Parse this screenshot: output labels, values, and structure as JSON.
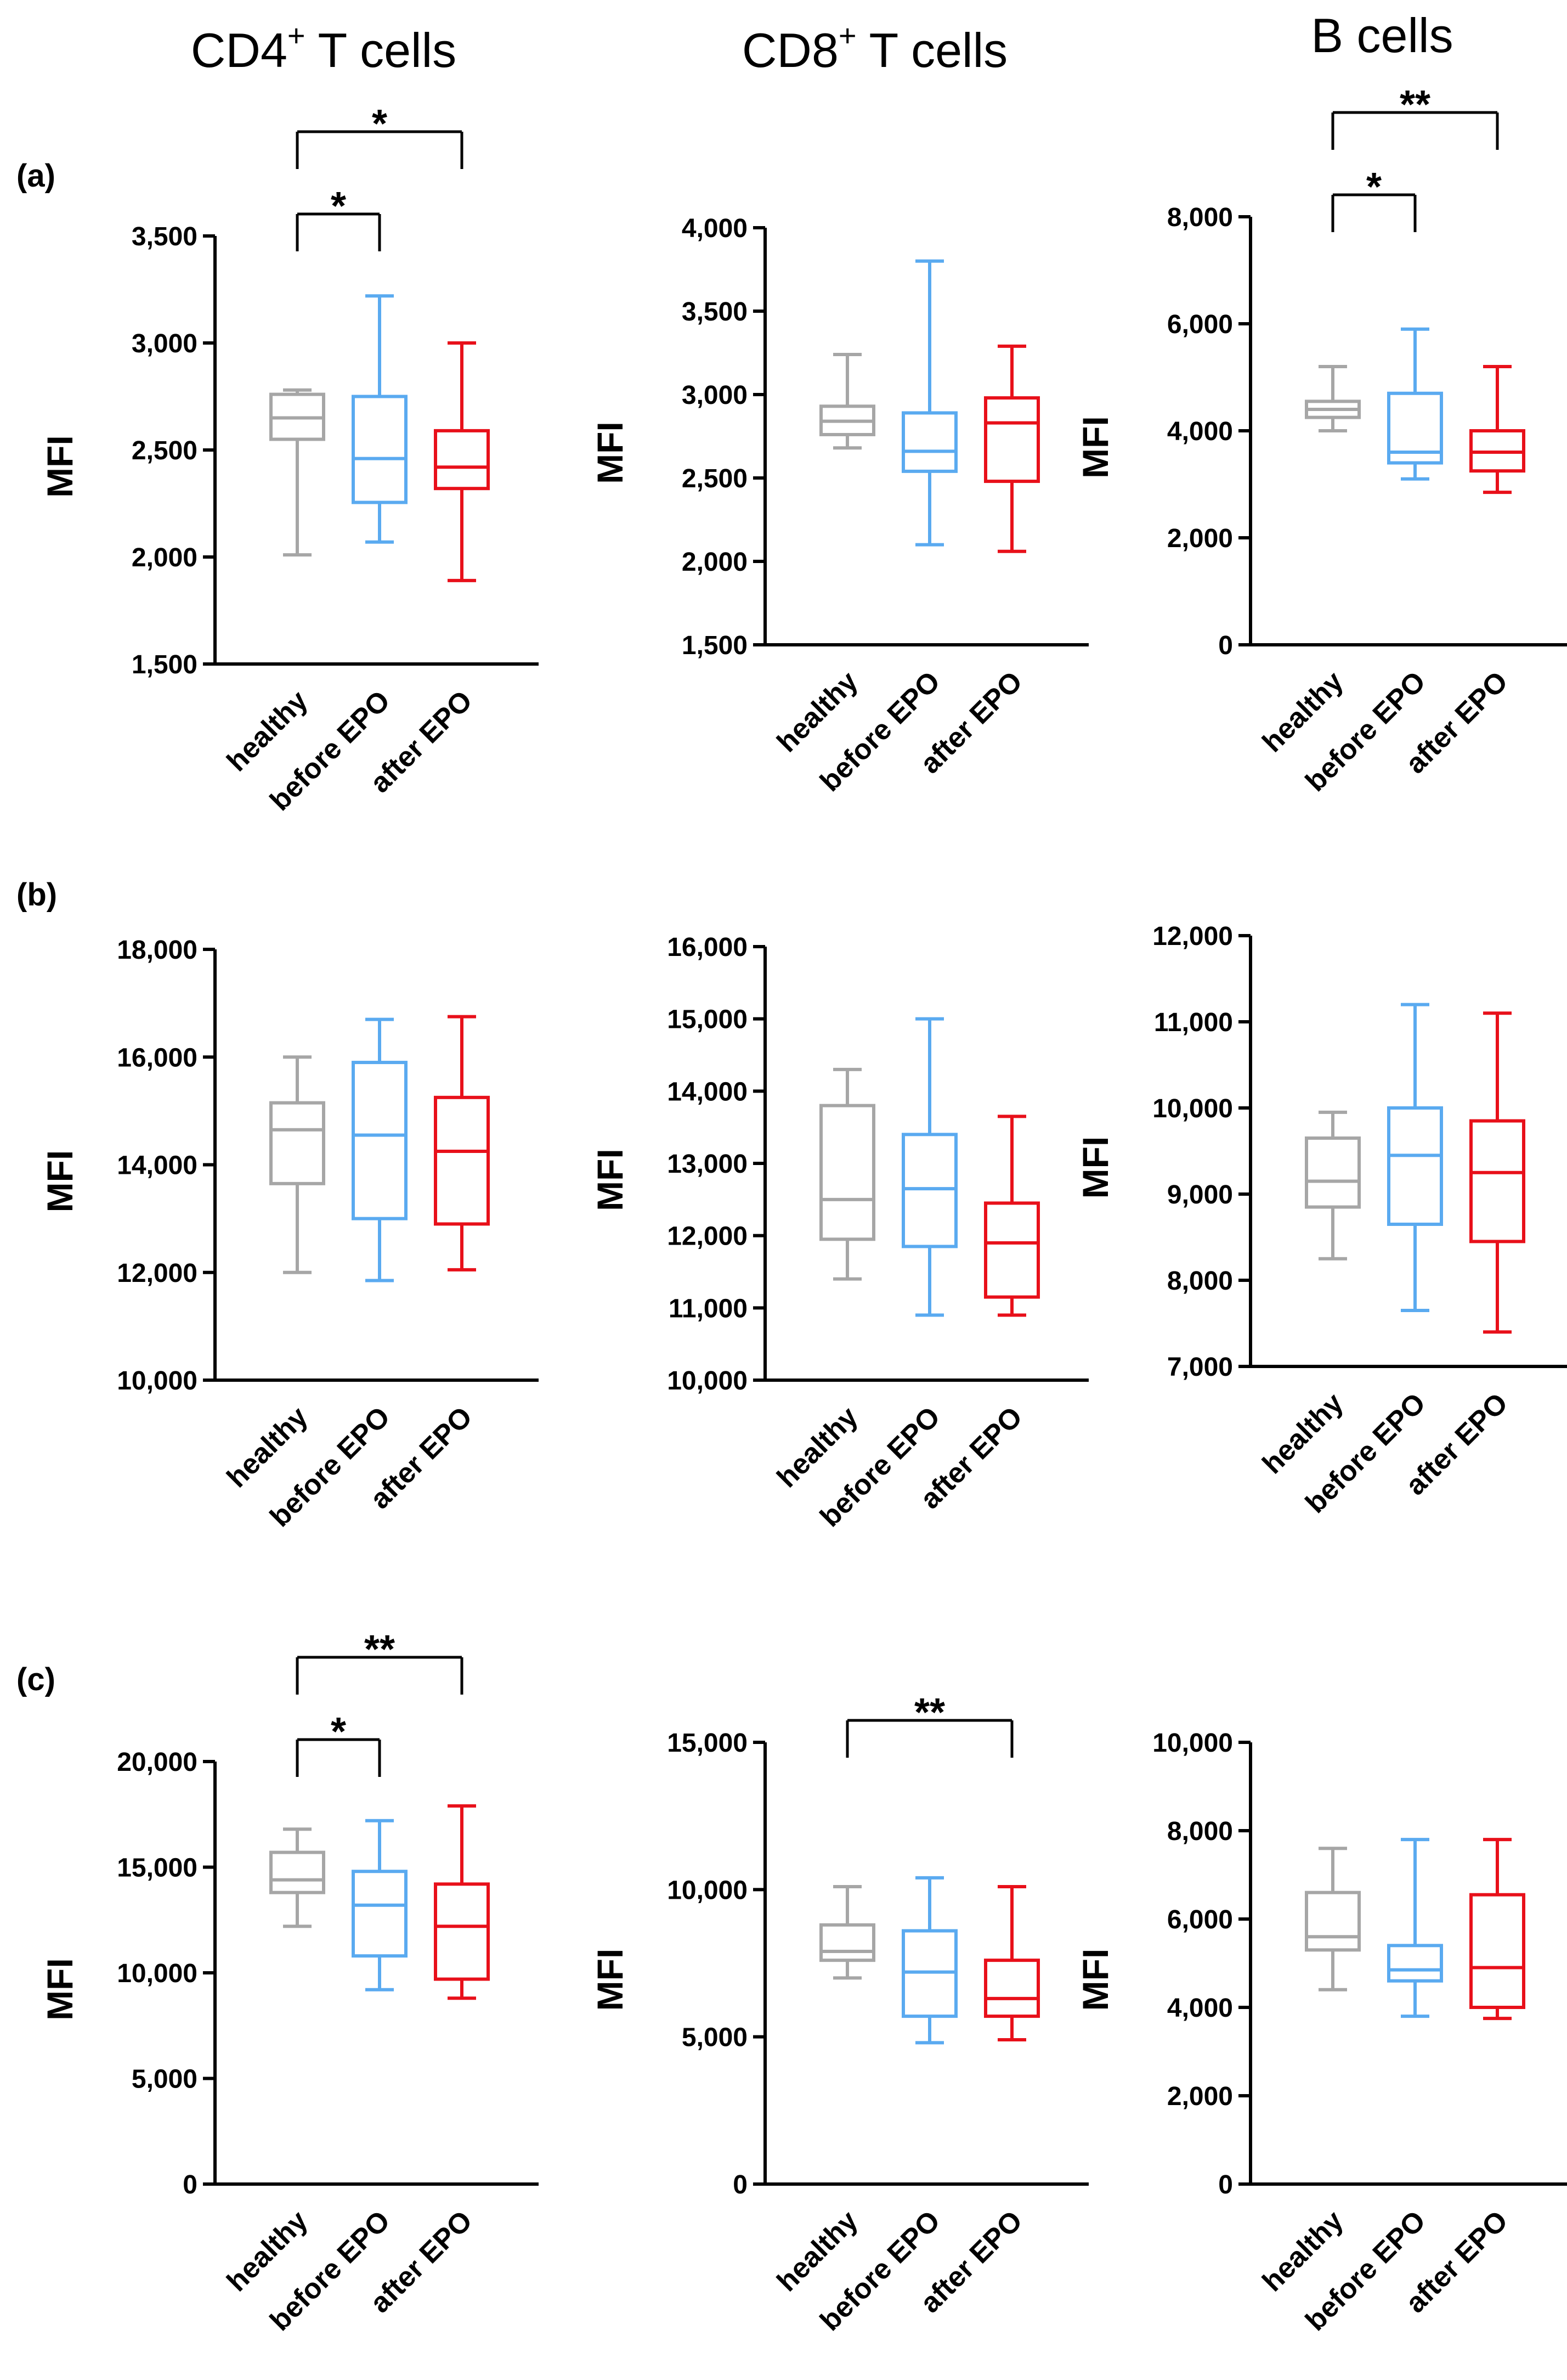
{
  "column_headers": [
    {
      "main": "CD4",
      "sup": "+",
      "rest": " T cells"
    },
    {
      "main": "CD8",
      "sup": "+",
      "rest": " T cells"
    },
    {
      "main": "B cells",
      "sup": "",
      "rest": ""
    }
  ],
  "row_labels": [
    "(a)",
    "(b)",
    "(c)"
  ],
  "colors": {
    "healthy": "#a6a6a6",
    "before EPO": "#5aaaf0",
    "after EPO": "#e8101a",
    "axis": "#000000"
  },
  "chart_data": [
    {
      "id": "a-cd4",
      "type": "boxplot",
      "row": "(a)",
      "column": "CD4+ T cells",
      "ylabel": "MFI",
      "categories": [
        "healthy",
        "before EPO",
        "after EPO"
      ],
      "ylim": [
        1500,
        3500
      ],
      "ticks": [
        1500,
        2000,
        2500,
        3000,
        3500
      ],
      "tick_labels": [
        "1,500",
        "2,000",
        "2,500",
        "3,000",
        "3,500"
      ],
      "boxes": [
        {
          "min": 2010,
          "q1": 2550,
          "median": 2650,
          "q3": 2760,
          "max": 2780
        },
        {
          "min": 2070,
          "q1": 2255,
          "median": 2460,
          "q3": 2750,
          "max": 3220
        },
        {
          "min": 1890,
          "q1": 2320,
          "median": 2420,
          "q3": 2590,
          "max": 3000
        }
      ],
      "brackets": [
        {
          "from": 0,
          "to": 1,
          "label": "*",
          "level": 0
        },
        {
          "from": 0,
          "to": 2,
          "label": "*",
          "level": 1
        }
      ]
    },
    {
      "id": "a-cd8",
      "type": "boxplot",
      "row": "(a)",
      "column": "CD8+ T cells",
      "ylabel": "MFI",
      "categories": [
        "healthy",
        "before EPO",
        "after EPO"
      ],
      "ylim": [
        1500,
        4000
      ],
      "ticks": [
        1500,
        2000,
        2500,
        3000,
        3500,
        4000
      ],
      "tick_labels": [
        "1,500",
        "2,000",
        "2,500",
        "3,000",
        "3,500",
        "4,000"
      ],
      "boxes": [
        {
          "min": 2680,
          "q1": 2760,
          "median": 2840,
          "q3": 2930,
          "max": 3240
        },
        {
          "min": 2100,
          "q1": 2540,
          "median": 2660,
          "q3": 2890,
          "max": 3800
        },
        {
          "min": 2060,
          "q1": 2480,
          "median": 2830,
          "q3": 2980,
          "max": 3290
        }
      ],
      "brackets": []
    },
    {
      "id": "a-b",
      "type": "boxplot",
      "row": "(a)",
      "column": "B cells",
      "ylabel": "MFI",
      "categories": [
        "healthy",
        "before EPO",
        "after EPO"
      ],
      "ylim": [
        0,
        8000
      ],
      "ticks": [
        0,
        2000,
        4000,
        6000,
        8000
      ],
      "tick_labels": [
        "0",
        "2,000",
        "4,000",
        "6,000",
        "8,000"
      ],
      "boxes": [
        {
          "min": 4000,
          "q1": 4250,
          "median": 4400,
          "q3": 4550,
          "max": 5200
        },
        {
          "min": 3100,
          "q1": 3400,
          "median": 3600,
          "q3": 4700,
          "max": 5900
        },
        {
          "min": 2850,
          "q1": 3250,
          "median": 3600,
          "q3": 4000,
          "max": 5200
        }
      ],
      "brackets": [
        {
          "from": 0,
          "to": 1,
          "label": "*",
          "level": 0
        },
        {
          "from": 0,
          "to": 2,
          "label": "**",
          "level": 1
        }
      ]
    },
    {
      "id": "b-cd4",
      "type": "boxplot",
      "row": "(b)",
      "column": "CD4+ T cells",
      "ylabel": "MFI",
      "categories": [
        "healthy",
        "before EPO",
        "after EPO"
      ],
      "ylim": [
        10000,
        18000
      ],
      "ticks": [
        10000,
        12000,
        14000,
        16000,
        18000
      ],
      "tick_labels": [
        "10,000",
        "12,000",
        "14,000",
        "16,000",
        "18,000"
      ],
      "boxes": [
        {
          "min": 12000,
          "q1": 13650,
          "median": 14650,
          "q3": 15150,
          "max": 16000
        },
        {
          "min": 11850,
          "q1": 13000,
          "median": 14550,
          "q3": 15900,
          "max": 16700
        },
        {
          "min": 12050,
          "q1": 12900,
          "median": 14250,
          "q3": 15250,
          "max": 16750
        }
      ],
      "brackets": []
    },
    {
      "id": "b-cd8",
      "type": "boxplot",
      "row": "(b)",
      "column": "CD8+ T cells",
      "ylabel": "MFI",
      "categories": [
        "healthy",
        "before EPO",
        "after EPO"
      ],
      "ylim": [
        10000,
        16000
      ],
      "ticks": [
        10000,
        11000,
        12000,
        13000,
        14000,
        15000,
        16000
      ],
      "tick_labels": [
        "10,000",
        "11,000",
        "12,000",
        "13,000",
        "14,000",
        "15,000",
        "16,000"
      ],
      "boxes": [
        {
          "min": 11400,
          "q1": 11950,
          "median": 12500,
          "q3": 13800,
          "max": 14300
        },
        {
          "min": 10900,
          "q1": 11850,
          "median": 12650,
          "q3": 13400,
          "max": 15000
        },
        {
          "min": 10900,
          "q1": 11150,
          "median": 11900,
          "q3": 12450,
          "max": 13650
        }
      ],
      "brackets": []
    },
    {
      "id": "b-b",
      "type": "boxplot",
      "row": "(b)",
      "column": "B cells",
      "ylabel": "MFI",
      "categories": [
        "healthy",
        "before EPO",
        "after EPO"
      ],
      "ylim": [
        7000,
        12000
      ],
      "ticks": [
        7000,
        8000,
        9000,
        10000,
        11000,
        12000
      ],
      "tick_labels": [
        "7,000",
        "8,000",
        "9,000",
        "10,000",
        "11,000",
        "12,000"
      ],
      "boxes": [
        {
          "min": 8250,
          "q1": 8850,
          "median": 9150,
          "q3": 9650,
          "max": 9950
        },
        {
          "min": 7650,
          "q1": 8650,
          "median": 9450,
          "q3": 10000,
          "max": 11200
        },
        {
          "min": 7400,
          "q1": 8450,
          "median": 9250,
          "q3": 9850,
          "max": 11100
        }
      ],
      "brackets": []
    },
    {
      "id": "c-cd4",
      "type": "boxplot",
      "row": "(c)",
      "column": "CD4+ T cells",
      "ylabel": "MFI",
      "categories": [
        "healthy",
        "before EPO",
        "after EPO"
      ],
      "ylim": [
        0,
        20000
      ],
      "ticks": [
        0,
        5000,
        10000,
        15000,
        20000
      ],
      "tick_labels": [
        "0",
        "5,000",
        "10,000",
        "15,000",
        "20,000"
      ],
      "boxes": [
        {
          "min": 12200,
          "q1": 13800,
          "median": 14400,
          "q3": 15700,
          "max": 16800
        },
        {
          "min": 9200,
          "q1": 10800,
          "median": 13200,
          "q3": 14800,
          "max": 17200
        },
        {
          "min": 8800,
          "q1": 9700,
          "median": 12200,
          "q3": 14200,
          "max": 17900
        }
      ],
      "brackets": [
        {
          "from": 0,
          "to": 1,
          "label": "*",
          "level": 0
        },
        {
          "from": 0,
          "to": 2,
          "label": "**",
          "level": 1
        }
      ]
    },
    {
      "id": "c-cd8",
      "type": "boxplot",
      "row": "(c)",
      "column": "CD8+ T cells",
      "ylabel": "MFI",
      "categories": [
        "healthy",
        "before EPO",
        "after EPO"
      ],
      "ylim": [
        0,
        15000
      ],
      "ticks": [
        0,
        5000,
        10000,
        15000
      ],
      "tick_labels": [
        "0",
        "5,000",
        "10,000",
        "15,000"
      ],
      "boxes": [
        {
          "min": 7000,
          "q1": 7600,
          "median": 7900,
          "q3": 8800,
          "max": 10100
        },
        {
          "min": 4800,
          "q1": 5700,
          "median": 7200,
          "q3": 8600,
          "max": 10400
        },
        {
          "min": 4900,
          "q1": 5700,
          "median": 6300,
          "q3": 7600,
          "max": 10100
        }
      ],
      "brackets": [
        {
          "from": 0,
          "to": 2,
          "label": "**",
          "level": 0
        }
      ]
    },
    {
      "id": "c-b",
      "type": "boxplot",
      "row": "(c)",
      "column": "B cells",
      "ylabel": "MFI",
      "categories": [
        "healthy",
        "before EPO",
        "after EPO"
      ],
      "ylim": [
        0,
        10000
      ],
      "ticks": [
        0,
        2000,
        4000,
        6000,
        8000,
        10000
      ],
      "tick_labels": [
        "0",
        "2,000",
        "4,000",
        "6,000",
        "8,000",
        "10,000"
      ],
      "boxes": [
        {
          "min": 4400,
          "q1": 5300,
          "median": 5600,
          "q3": 6600,
          "max": 7600
        },
        {
          "min": 3800,
          "q1": 4600,
          "median": 4850,
          "q3": 5400,
          "max": 7800
        },
        {
          "min": 3750,
          "q1": 4000,
          "median": 4900,
          "q3": 6550,
          "max": 7800
        }
      ],
      "brackets": []
    }
  ]
}
